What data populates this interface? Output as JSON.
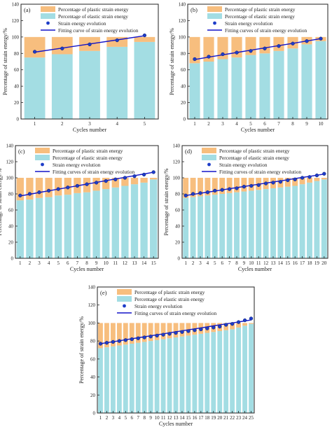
{
  "colors": {
    "plastic": "#F7BE7E",
    "elastic": "#A3DDE3",
    "marker": "#1E3DC8",
    "fit": "#1414C8",
    "axis": "#222222"
  },
  "shared": {
    "ylabel": "Percentage of strain energy/%",
    "xlabel": "Cycles number",
    "yticks": [
      0,
      20,
      40,
      60,
      80,
      100,
      120,
      140
    ]
  },
  "chart_data": [
    {
      "type": "bar",
      "panel_label": "(a)",
      "xlabel": "Cycles number",
      "ylabel": "Percentage of strain energy/%",
      "ylim": [
        0,
        140
      ],
      "grid": false,
      "legend_position": "top-left",
      "legend": [
        "Percentage of plastic strain energy",
        "Percentage of elastic strain energy",
        "Strain energy evolution",
        "Fitting curve of strain energy evolution"
      ],
      "categories": [
        "1",
        "2",
        "3",
        "4",
        "5"
      ],
      "series": [
        {
          "name": "Percentage of plastic strain energy",
          "values": [
            25,
            21,
            17,
            12,
            6
          ]
        },
        {
          "name": "Percentage of elastic strain energy",
          "values": [
            75,
            79,
            83,
            88,
            94
          ]
        },
        {
          "name": "Strain energy evolution",
          "values": [
            82,
            86,
            91,
            96,
            102
          ]
        },
        {
          "name": "Fitting curve of strain energy evolution",
          "values": [
            81.5,
            86.5,
            91.5,
            96.5,
            101.5
          ]
        }
      ]
    },
    {
      "type": "bar",
      "panel_label": "(b)",
      "xlabel": "Cycles number",
      "ylabel": "Percentage of strain energy/%",
      "ylim": [
        0,
        140
      ],
      "grid": false,
      "legend_position": "top-left",
      "legend": [
        "Percentage of plastic strain energy",
        "Percentage of elastic strain energy",
        "Strain energy evolution",
        "Fitting curves of strain energy evolution"
      ],
      "categories": [
        "1",
        "2",
        "3",
        "4",
        "5",
        "6",
        "7",
        "8",
        "9",
        "10"
      ],
      "series": [
        {
          "name": "Percentage of plastic strain energy",
          "values": [
            32,
            30,
            27,
            25,
            22,
            20,
            17,
            14,
            9,
            5
          ]
        },
        {
          "name": "Percentage of elastic strain energy",
          "values": [
            68,
            70,
            73,
            75,
            78,
            80,
            83,
            86,
            91,
            95
          ]
        },
        {
          "name": "Strain energy evolution",
          "values": [
            73,
            76,
            79,
            81,
            83,
            86,
            89,
            92,
            95,
            98
          ]
        },
        {
          "name": "Fitting curves of strain energy evolution",
          "values": [
            72.5,
            75.5,
            78.3,
            81.1,
            83.9,
            86.7,
            89.5,
            92.3,
            95.1,
            98
          ]
        }
      ]
    },
    {
      "type": "bar",
      "panel_label": "(c)",
      "xlabel": "Cycles number",
      "ylabel": "Percentage of strain energy/%",
      "ylim": [
        0,
        140
      ],
      "grid": false,
      "legend_position": "top-left",
      "legend": [
        "Percentage of plastic strain energy",
        "Percentage of elastic strain energy",
        "Strain energy evolution",
        "Fitting curves of strain energy evolution"
      ],
      "categories": [
        "1",
        "2",
        "3",
        "4",
        "5",
        "6",
        "7",
        "8",
        "9",
        "10",
        "11",
        "12",
        "13",
        "14",
        "15"
      ],
      "series": [
        {
          "name": "Percentage of plastic strain energy",
          "values": [
            28,
            27,
            25,
            24,
            22,
            21,
            19,
            18,
            16,
            14,
            12,
            10,
            8,
            6,
            2
          ]
        },
        {
          "name": "Percentage of elastic strain energy",
          "values": [
            72,
            73,
            75,
            76,
            78,
            79,
            81,
            82,
            84,
            86,
            88,
            90,
            92,
            94,
            98
          ]
        },
        {
          "name": "Strain energy evolution",
          "values": [
            78,
            80,
            82,
            84,
            86,
            88,
            90,
            92,
            94,
            96,
            98,
            100,
            102,
            104,
            107
          ]
        },
        {
          "name": "Fitting curves of strain energy evolution",
          "values": [
            77.5,
            79.6,
            81.7,
            83.8,
            85.9,
            88.0,
            90.1,
            92.2,
            94.3,
            96.4,
            98.5,
            100.6,
            102.7,
            104.8,
            106.9
          ]
        }
      ]
    },
    {
      "type": "bar",
      "panel_label": "(d)",
      "xlabel": "Cycles number",
      "ylabel": "Percentage of strain energy/%",
      "ylim": [
        0,
        140
      ],
      "grid": false,
      "legend_position": "top-left",
      "legend": [
        "Percentage of plastic strain energy",
        "Percentage of elastic strain energy",
        "Strain energy evolution",
        "Fitting curves of strain energy evolution"
      ],
      "categories": [
        "1",
        "2",
        "3",
        "4",
        "5",
        "6",
        "7",
        "8",
        "9",
        "10",
        "11",
        "12",
        "13",
        "14",
        "15",
        "16",
        "17",
        "18",
        "19",
        "20"
      ],
      "series": [
        {
          "name": "Percentage of plastic strain energy",
          "values": [
            25,
            24,
            23,
            22,
            21,
            20,
            19,
            18,
            17,
            16,
            15,
            14,
            13,
            12,
            11,
            10,
            8,
            6,
            4,
            2
          ]
        },
        {
          "name": "Percentage of elastic strain energy",
          "values": [
            75,
            76,
            77,
            78,
            79,
            80,
            81,
            82,
            83,
            84,
            85,
            86,
            87,
            88,
            89,
            90,
            92,
            94,
            96,
            98
          ]
        },
        {
          "name": "Strain energy evolution",
          "values": [
            78,
            80,
            81,
            82,
            84,
            85,
            86,
            87,
            89,
            90,
            91,
            93,
            94,
            95,
            97,
            98,
            100,
            101,
            103,
            105
          ]
        },
        {
          "name": "Fitting curves of strain energy evolution",
          "values": [
            78,
            79.4,
            80.8,
            82.2,
            83.6,
            85.0,
            86.4,
            87.8,
            89.2,
            90.6,
            92.0,
            93.4,
            94.8,
            96.2,
            97.6,
            99.0,
            100.4,
            101.8,
            103.2,
            104.6
          ]
        }
      ]
    },
    {
      "type": "bar",
      "panel_label": "(e)",
      "xlabel": "Cycles number",
      "ylabel": "Percentage of strain energy/%",
      "ylim": [
        0,
        140
      ],
      "grid": false,
      "legend_position": "top-left",
      "legend": [
        "Percentage of plastic strain energy",
        "Percentage of elastic strain energy",
        "Strain energy evolution",
        "Fitting curves of strain energy evolution"
      ],
      "categories": [
        "1",
        "2",
        "3",
        "4",
        "5",
        "6",
        "7",
        "8",
        "9",
        "10",
        "11",
        "12",
        "13",
        "14",
        "15",
        "16",
        "17",
        "18",
        "19",
        "20",
        "21",
        "22",
        "23",
        "24",
        "25"
      ],
      "series": [
        {
          "name": "Percentage of plastic strain energy",
          "values": [
            28,
            27,
            26,
            25,
            24,
            23,
            22,
            21,
            20,
            19,
            18,
            17,
            16,
            15,
            14,
            13,
            12,
            11,
            10,
            9,
            8,
            7,
            5,
            3,
            1
          ]
        },
        {
          "name": "Percentage of elastic strain energy",
          "values": [
            72,
            73,
            74,
            75,
            76,
            77,
            78,
            79,
            80,
            81,
            82,
            83,
            84,
            85,
            86,
            87,
            88,
            89,
            90,
            91,
            92,
            93,
            95,
            97,
            99
          ]
        },
        {
          "name": "Strain energy evolution",
          "values": [
            77,
            78,
            79,
            80,
            81,
            82,
            83,
            84,
            85,
            86,
            87,
            88,
            89,
            90,
            91,
            92,
            93,
            94,
            95,
            96,
            98,
            99,
            101,
            103,
            105
          ]
        },
        {
          "name": "Fitting curves of strain energy evolution",
          "values": [
            77,
            78.1,
            79.2,
            80.3,
            81.4,
            82.5,
            83.6,
            84.7,
            85.8,
            86.9,
            88.0,
            89.1,
            90.2,
            91.3,
            92.4,
            93.5,
            94.6,
            95.7,
            96.8,
            97.9,
            99.0,
            100.1,
            101.2,
            102.3,
            103.4
          ]
        }
      ]
    }
  ]
}
